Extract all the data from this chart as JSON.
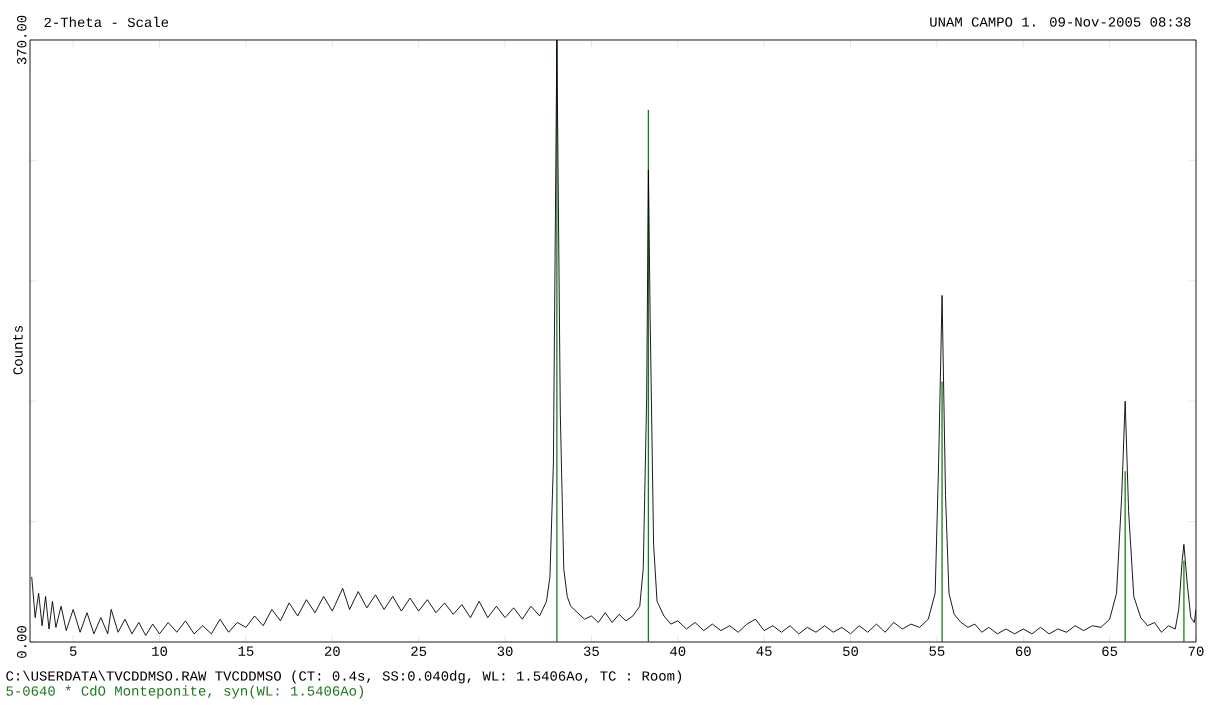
{
  "chart_data": {
    "type": "line",
    "title": "UNAM CAMPO 1. 09-Nov-2005 08:38",
    "xlabel": "2-Theta - Scale",
    "ylabel": "Counts",
    "xlim": [
      2.5,
      70
    ],
    "xticks": [
      5,
      10,
      15,
      20,
      25,
      30,
      35,
      40,
      45,
      50,
      55,
      60,
      65,
      70
    ],
    "ylim": [
      0,
      370
    ],
    "yticks": [
      {
        "value": 0,
        "label": "0.00"
      },
      {
        "value": 74,
        "label": null
      },
      {
        "value": 148,
        "label": null
      },
      {
        "value": 222,
        "label": null
      },
      {
        "value": 296,
        "label": null
      },
      {
        "value": 370,
        "label": "370.00"
      }
    ],
    "grid": false,
    "marker": "none",
    "line_style": "solid",
    "annotations": [
      "C:\\USERDATA\\TVCDDMSO.RAW TVCDDMSO (CT:  0.4s, SS:0.040dg, WL: 1.5406Ao, TC : Room)",
      "5-0640 * CdO Monteponite, syn(WL: 1.5406Ao)"
    ],
    "series": [
      {
        "color": "#000000",
        "x": [
          2.6,
          2.8,
          3.0,
          3.2,
          3.4,
          3.6,
          3.8,
          4.0,
          4.3,
          4.6,
          5.0,
          5.4,
          5.8,
          6.2,
          6.6,
          7.0,
          7.2,
          7.6,
          8.0,
          8.4,
          8.8,
          9.2,
          9.6,
          10.0,
          10.5,
          11.0,
          11.5,
          12.0,
          12.5,
          13.0,
          13.5,
          14.0,
          14.5,
          15.0,
          15.5,
          16.0,
          16.5,
          17.0,
          17.5,
          18.0,
          18.5,
          19.0,
          19.5,
          20.0,
          20.6,
          21.0,
          21.5,
          22.0,
          22.5,
          23.0,
          23.5,
          24.0,
          24.5,
          25.0,
          25.5,
          26.0,
          26.5,
          27.0,
          27.5,
          28.0,
          28.5,
          29.0,
          29.5,
          30.0,
          30.5,
          31.0,
          31.5,
          32.0,
          32.4,
          32.6,
          32.8,
          33.0,
          33.2,
          33.4,
          33.6,
          33.8,
          34.2,
          34.6,
          35.0,
          35.4,
          35.8,
          36.2,
          36.6,
          37.0,
          37.4,
          37.8,
          38.0,
          38.2,
          38.3,
          38.4,
          38.6,
          38.8,
          39.2,
          39.6,
          40.0,
          40.5,
          41.0,
          41.5,
          42.0,
          42.5,
          43.0,
          43.5,
          44.0,
          44.5,
          45.0,
          45.5,
          46.0,
          46.5,
          47.0,
          47.5,
          48.0,
          48.5,
          49.0,
          49.5,
          50.0,
          50.5,
          51.0,
          51.5,
          52.0,
          52.5,
          53.0,
          53.5,
          54.0,
          54.5,
          54.9,
          55.1,
          55.3,
          55.5,
          55.7,
          56.0,
          56.4,
          56.8,
          57.2,
          57.6,
          58.0,
          58.5,
          59.0,
          59.5,
          60.0,
          60.5,
          61.0,
          61.5,
          62.0,
          62.5,
          63.0,
          63.5,
          64.0,
          64.5,
          65.0,
          65.4,
          65.7,
          65.9,
          66.1,
          66.4,
          66.8,
          67.2,
          67.6,
          68.0,
          68.4,
          68.8,
          69.0,
          69.2,
          69.3,
          69.5,
          69.7,
          69.9,
          70.0
        ],
        "values": [
          40,
          15,
          30,
          10,
          28,
          8,
          25,
          9,
          22,
          7,
          20,
          6,
          18,
          5,
          15,
          5,
          20,
          6,
          14,
          5,
          12,
          4,
          11,
          5,
          12,
          6,
          13,
          5,
          10,
          5,
          14,
          6,
          12,
          9,
          16,
          10,
          20,
          13,
          24,
          16,
          26,
          18,
          28,
          19,
          33,
          20,
          31,
          21,
          29,
          20,
          28,
          19,
          27,
          19,
          26,
          18,
          24,
          17,
          23,
          15,
          25,
          15,
          22,
          15,
          21,
          14,
          22,
          16,
          25,
          40,
          110,
          370,
          140,
          45,
          28,
          22,
          18,
          14,
          16,
          12,
          18,
          12,
          17,
          13,
          16,
          22,
          45,
          150,
          290,
          200,
          60,
          25,
          16,
          11,
          13,
          8,
          12,
          7,
          11,
          7,
          10,
          6,
          11,
          14,
          7,
          10,
          6,
          10,
          5,
          9,
          6,
          10,
          6,
          9,
          5,
          10,
          6,
          11,
          6,
          12,
          8,
          11,
          9,
          14,
          30,
          110,
          213,
          90,
          30,
          17,
          12,
          9,
          11,
          6,
          9,
          5,
          8,
          5,
          8,
          5,
          9,
          5,
          8,
          6,
          10,
          7,
          10,
          9,
          14,
          30,
          90,
          148,
          80,
          28,
          15,
          10,
          12,
          6,
          10,
          8,
          20,
          50,
          60,
          35,
          15,
          12,
          20
        ]
      },
      {
        "type": "bar",
        "color": "#1a7a1a",
        "x": [
          33.0,
          38.3,
          55.3,
          65.9,
          69.3
        ],
        "values": [
          370,
          327,
          160,
          105,
          50
        ]
      }
    ]
  }
}
